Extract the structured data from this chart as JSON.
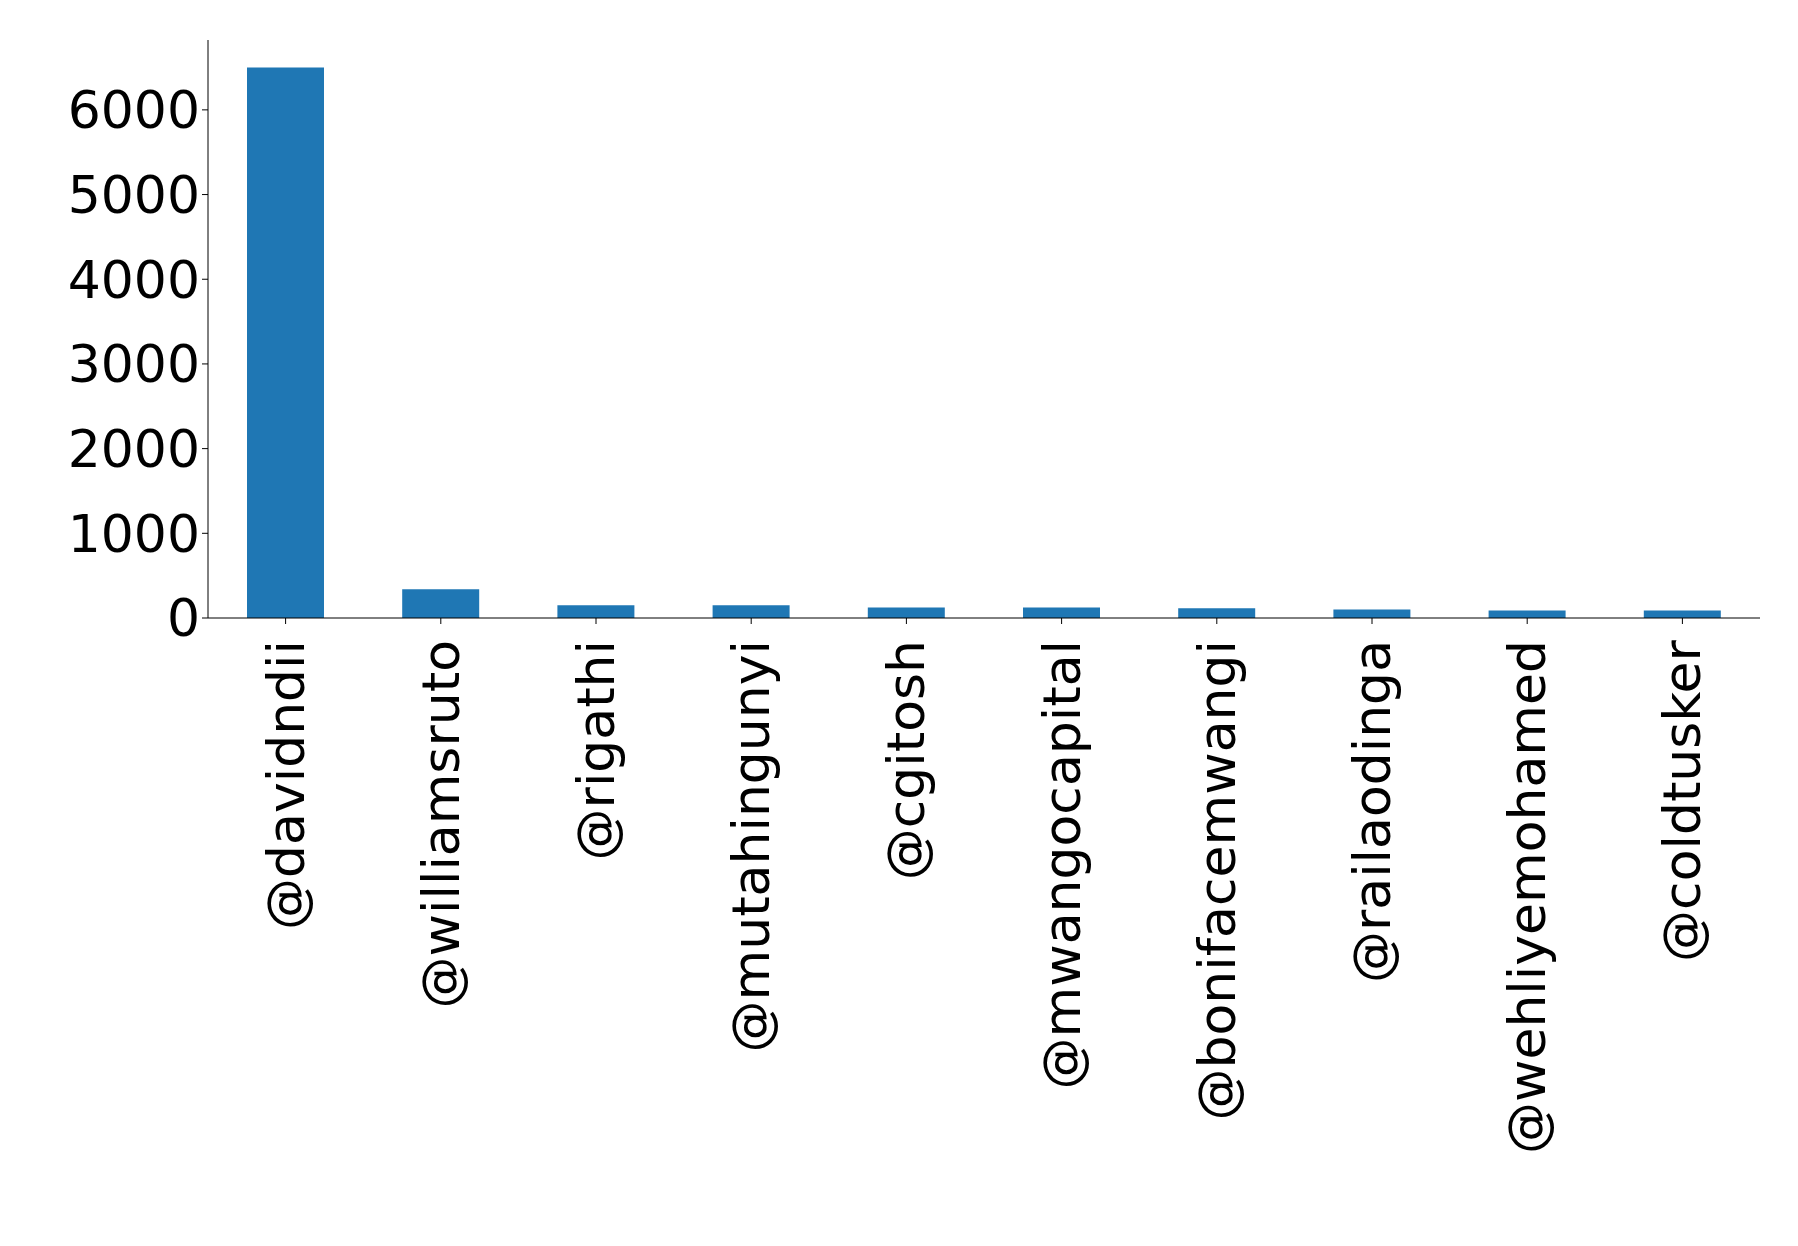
{
  "chart_data": {
    "type": "bar",
    "categories": [
      "@davidndii",
      "@williamsruto",
      "@rigathi",
      "@mutahingunyi",
      "@cgitosh",
      "@mwangocapital",
      "@bonifacemwangi",
      "@railaodinga",
      "@wehliyemohamed",
      "@coldtusker"
    ],
    "values": [
      6500,
      340,
      150,
      150,
      125,
      125,
      115,
      100,
      90,
      90
    ],
    "color": "#1f77b4",
    "ylim": [
      0,
      6825
    ],
    "yticks": [
      0,
      1000,
      2000,
      3000,
      4000,
      5000,
      6000
    ],
    "grid": false,
    "legend": false
  }
}
